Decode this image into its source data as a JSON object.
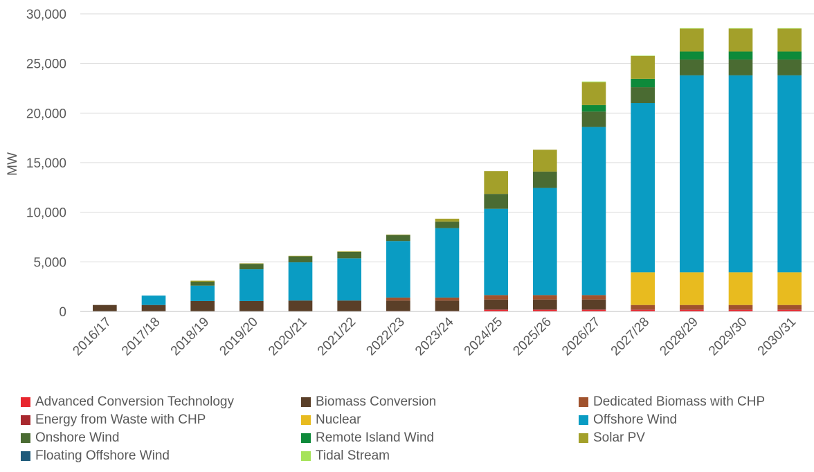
{
  "chart_data": {
    "type": "bar",
    "stacked": true,
    "title": "",
    "xlabel": "",
    "ylabel": "MW",
    "ylim": [
      0,
      30000
    ],
    "yticks": [
      0,
      5000,
      10000,
      15000,
      20000,
      25000,
      30000
    ],
    "ytick_labels": [
      "0",
      "5,000",
      "10,000",
      "15,000",
      "20,000",
      "25,000",
      "30,000"
    ],
    "grid": true,
    "legend_position": "bottom",
    "categories": [
      "2016/17",
      "2017/18",
      "2018/19",
      "2019/20",
      "2020/21",
      "2021/22",
      "2022/23",
      "2023/24",
      "2024/25",
      "2025/26",
      "2026/27",
      "2027/28",
      "2028/29",
      "2029/30",
      "2030/31"
    ],
    "series": [
      {
        "name": "Advanced Conversion Technology",
        "color": "#E8262E",
        "values": [
          0,
          0,
          0,
          0,
          0,
          0,
          50,
          50,
          150,
          150,
          150,
          150,
          150,
          150,
          150
        ]
      },
      {
        "name": "Energy from Waste with CHP",
        "color": "#A8282E",
        "values": [
          0,
          0,
          0,
          0,
          0,
          0,
          0,
          0,
          50,
          50,
          50,
          50,
          50,
          50,
          50
        ]
      },
      {
        "name": "Biomass Conversion",
        "color": "#5A3F28",
        "values": [
          650,
          650,
          1050,
          1050,
          1100,
          1100,
          1050,
          1050,
          1000,
          1000,
          1000,
          0,
          0,
          0,
          0
        ]
      },
      {
        "name": "Dedicated Biomass with CHP",
        "color": "#A0522D",
        "values": [
          0,
          0,
          0,
          0,
          0,
          0,
          300,
          300,
          450,
          450,
          450,
          450,
          450,
          450,
          450
        ]
      },
      {
        "name": "Nuclear",
        "color": "#E8BB1F",
        "values": [
          0,
          0,
          0,
          0,
          0,
          0,
          0,
          0,
          0,
          0,
          0,
          3300,
          3300,
          3300,
          3300
        ]
      },
      {
        "name": "Offshore Wind",
        "color": "#0A9CC3",
        "values": [
          0,
          950,
          1550,
          3200,
          3850,
          4250,
          5700,
          7000,
          8700,
          10800,
          16950,
          17050,
          19850,
          19850,
          19850
        ]
      },
      {
        "name": "Onshore Wind",
        "color": "#4A6B32",
        "values": [
          0,
          0,
          400,
          550,
          600,
          650,
          600,
          650,
          1500,
          1650,
          1550,
          1600,
          1600,
          1600,
          1600
        ]
      },
      {
        "name": "Remote Island Wind",
        "color": "#0E8A3A",
        "values": [
          0,
          0,
          0,
          0,
          0,
          0,
          0,
          0,
          0,
          0,
          650,
          850,
          800,
          800,
          800
        ]
      },
      {
        "name": "Solar PV",
        "color": "#A3A02A",
        "values": [
          0,
          0,
          100,
          50,
          50,
          50,
          50,
          300,
          2300,
          2200,
          2300,
          2300,
          2300,
          2300,
          2300
        ]
      },
      {
        "name": "Floating Offshore Wind",
        "color": "#1E5A7A",
        "values": [
          0,
          0,
          0,
          0,
          0,
          0,
          0,
          0,
          0,
          0,
          0,
          0,
          0,
          0,
          0
        ]
      },
      {
        "name": "Tidal Stream",
        "color": "#A6E35A",
        "values": [
          0,
          0,
          0,
          0,
          0,
          0,
          0,
          0,
          0,
          0,
          80,
          40,
          50,
          50,
          50
        ]
      }
    ],
    "legend_order": [
      "Advanced Conversion Technology",
      "Biomass Conversion",
      "Dedicated Biomass with CHP",
      "Energy from Waste with CHP",
      "Nuclear",
      "Offshore Wind",
      "Onshore Wind",
      "Remote Island Wind",
      "Solar PV",
      "Floating Offshore Wind",
      "Tidal Stream"
    ]
  }
}
